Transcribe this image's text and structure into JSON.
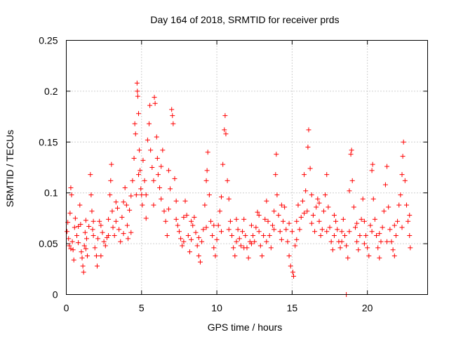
{
  "chart_data": {
    "type": "scatter",
    "title": "Day 164 of 2018, SRMTID for receiver prds",
    "xlabel": "GPS time / hours",
    "ylabel": "SRMTID / TECUs",
    "xlim": [
      0,
      24
    ],
    "ylim": [
      0,
      0.25
    ],
    "xticks": [
      0,
      5,
      10,
      15,
      20
    ],
    "xtick_labels": [
      "0",
      "5",
      "10",
      "15",
      "20"
    ],
    "yticks": [
      0,
      0.05,
      0.1,
      0.15,
      0.2,
      0.25
    ],
    "ytick_labels": [
      "0",
      "0.05",
      "0.1",
      "0.15",
      "0.2",
      "0.25"
    ],
    "grid": true,
    "marker": "+",
    "color": "#ff0000",
    "series": [
      {
        "name": "prds",
        "points": [
          [
            0.05,
            0.062
          ],
          [
            0.1,
            0.071
          ],
          [
            0.15,
            0.055
          ],
          [
            0.2,
            0.048
          ],
          [
            0.25,
            0.08
          ],
          [
            0.3,
            0.105
          ],
          [
            0.35,
            0.098
          ],
          [
            0.4,
            0.052
          ],
          [
            0.45,
            0.044
          ],
          [
            0.5,
            0.034
          ],
          [
            0.55,
            0.066
          ],
          [
            0.6,
            0.075
          ],
          [
            0.7,
            0.058
          ],
          [
            0.8,
            0.051
          ],
          [
            0.9,
            0.088
          ],
          [
            0.95,
            0.069
          ],
          [
            1.0,
            0.042
          ],
          [
            1.05,
            0.036
          ],
          [
            1.1,
            0.028
          ],
          [
            1.15,
            0.022
          ],
          [
            1.2,
            0.048
          ],
          [
            1.25,
            0.061
          ],
          [
            1.3,
            0.073
          ],
          [
            1.35,
            0.055
          ],
          [
            1.4,
            0.038
          ],
          [
            1.5,
            0.067
          ],
          [
            1.6,
            0.118
          ],
          [
            1.65,
            0.098
          ],
          [
            1.7,
            0.082
          ],
          [
            1.75,
            0.064
          ],
          [
            1.8,
            0.058
          ],
          [
            1.9,
            0.046
          ],
          [
            2.0,
            0.038
          ],
          [
            2.05,
            0.028
          ],
          [
            2.1,
            0.055
          ],
          [
            2.2,
            0.072
          ],
          [
            2.3,
            0.068
          ],
          [
            2.4,
            0.061
          ],
          [
            2.5,
            0.052
          ],
          [
            2.6,
            0.048
          ],
          [
            2.7,
            0.056
          ],
          [
            2.8,
            0.074
          ],
          [
            2.9,
            0.098
          ],
          [
            2.95,
            0.112
          ],
          [
            3.0,
            0.128
          ],
          [
            3.05,
            0.082
          ],
          [
            3.1,
            0.066
          ],
          [
            3.2,
            0.058
          ],
          [
            3.3,
            0.072
          ],
          [
            3.4,
            0.085
          ],
          [
            3.5,
            0.064
          ],
          [
            3.6,
            0.052
          ],
          [
            3.7,
            0.076
          ],
          [
            3.8,
            0.091
          ],
          [
            3.9,
            0.105
          ],
          [
            4.0,
            0.088
          ],
          [
            4.05,
            0.068
          ],
          [
            4.1,
            0.055
          ],
          [
            4.2,
            0.083
          ],
          [
            4.3,
            0.097
          ],
          [
            4.4,
            0.112
          ],
          [
            4.5,
            0.134
          ],
          [
            4.55,
            0.168
          ],
          [
            4.6,
            0.158
          ],
          [
            4.65,
            0.098
          ],
          [
            4.7,
            0.208
          ],
          [
            4.72,
            0.2
          ],
          [
            4.75,
            0.195
          ],
          [
            4.8,
            0.178
          ],
          [
            4.85,
            0.142
          ],
          [
            4.9,
            0.122
          ],
          [
            4.95,
            0.104
          ],
          [
            5.0,
            0.098
          ],
          [
            5.05,
            0.088
          ],
          [
            5.1,
            0.132
          ],
          [
            5.2,
            0.112
          ],
          [
            5.3,
            0.098
          ],
          [
            5.4,
            0.152
          ],
          [
            5.5,
            0.168
          ],
          [
            5.55,
            0.186
          ],
          [
            5.6,
            0.142
          ],
          [
            5.7,
            0.125
          ],
          [
            5.8,
            0.112
          ],
          [
            5.85,
            0.194
          ],
          [
            5.9,
            0.188
          ],
          [
            6.0,
            0.155
          ],
          [
            6.05,
            0.134
          ],
          [
            6.1,
            0.118
          ],
          [
            6.2,
            0.105
          ],
          [
            6.3,
            0.094
          ],
          [
            6.4,
            0.142
          ],
          [
            6.5,
            0.082
          ],
          [
            6.6,
            0.072
          ],
          [
            6.7,
            0.058
          ],
          [
            6.8,
            0.122
          ],
          [
            6.9,
            0.104
          ],
          [
            7.0,
            0.182
          ],
          [
            7.05,
            0.176
          ],
          [
            7.1,
            0.168
          ],
          [
            7.2,
            0.114
          ],
          [
            7.3,
            0.092
          ],
          [
            7.4,
            0.068
          ],
          [
            7.5,
            0.062
          ],
          [
            7.6,
            0.055
          ],
          [
            7.7,
            0.048
          ],
          [
            7.8,
            0.076
          ],
          [
            7.9,
            0.092
          ],
          [
            8.0,
            0.078
          ],
          [
            8.1,
            0.058
          ],
          [
            8.2,
            0.042
          ],
          [
            8.3,
            0.054
          ],
          [
            8.4,
            0.068
          ],
          [
            8.5,
            0.076
          ],
          [
            8.6,
            0.061
          ],
          [
            8.7,
            0.048
          ],
          [
            8.8,
            0.038
          ],
          [
            8.9,
            0.032
          ],
          [
            9.0,
            0.052
          ],
          [
            9.1,
            0.064
          ],
          [
            9.2,
            0.088
          ],
          [
            9.3,
            0.112
          ],
          [
            9.35,
            0.122
          ],
          [
            9.4,
            0.14
          ],
          [
            9.5,
            0.098
          ],
          [
            9.6,
            0.072
          ],
          [
            9.7,
            0.058
          ],
          [
            9.8,
            0.046
          ],
          [
            9.9,
            0.038
          ],
          [
            10.0,
            0.054
          ],
          [
            10.1,
            0.068
          ],
          [
            10.2,
            0.082
          ],
          [
            10.3,
            0.096
          ],
          [
            10.4,
            0.128
          ],
          [
            10.5,
            0.162
          ],
          [
            10.55,
            0.176
          ],
          [
            10.6,
            0.158
          ],
          [
            10.7,
            0.112
          ],
          [
            10.8,
            0.094
          ],
          [
            10.9,
            0.072
          ],
          [
            11.0,
            0.058
          ],
          [
            11.1,
            0.046
          ],
          [
            11.2,
            0.038
          ],
          [
            11.3,
            0.052
          ],
          [
            11.4,
            0.064
          ],
          [
            11.5,
            0.055
          ],
          [
            11.6,
            0.048
          ],
          [
            11.7,
            0.062
          ],
          [
            11.8,
            0.074
          ],
          [
            11.9,
            0.058
          ],
          [
            12.0,
            0.046
          ],
          [
            12.1,
            0.036
          ],
          [
            12.2,
            0.052
          ],
          [
            12.3,
            0.068
          ],
          [
            12.4,
            0.058
          ],
          [
            12.5,
            0.052
          ],
          [
            12.6,
            0.066
          ],
          [
            12.7,
            0.081
          ],
          [
            12.8,
            0.062
          ],
          [
            12.9,
            0.048
          ],
          [
            13.0,
            0.038
          ],
          [
            13.1,
            0.058
          ],
          [
            13.2,
            0.074
          ],
          [
            13.3,
            0.092
          ],
          [
            13.4,
            0.072
          ],
          [
            13.5,
            0.058
          ],
          [
            13.6,
            0.046
          ],
          [
            13.7,
            0.068
          ],
          [
            13.8,
            0.082
          ],
          [
            13.9,
            0.118
          ],
          [
            13.95,
            0.138
          ],
          [
            14.0,
            0.098
          ],
          [
            14.1,
            0.078
          ],
          [
            14.2,
            0.062
          ],
          [
            14.3,
            0.054
          ],
          [
            14.4,
            0.072
          ],
          [
            14.5,
            0.086
          ],
          [
            14.6,
            0.064
          ],
          [
            14.7,
            0.052
          ],
          [
            14.8,
            0.038
          ],
          [
            14.9,
            0.028
          ],
          [
            15.0,
            0.062
          ],
          [
            15.05,
            0.022
          ],
          [
            15.1,
            0.018
          ],
          [
            15.2,
            0.048
          ],
          [
            15.3,
            0.072
          ],
          [
            15.4,
            0.088
          ],
          [
            15.5,
            0.064
          ],
          [
            15.6,
            0.076
          ],
          [
            15.7,
            0.092
          ],
          [
            15.8,
            0.118
          ],
          [
            15.9,
            0.102
          ],
          [
            16.0,
            0.082
          ],
          [
            16.05,
            0.145
          ],
          [
            16.1,
            0.162
          ],
          [
            16.2,
            0.124
          ],
          [
            16.3,
            0.098
          ],
          [
            16.4,
            0.078
          ],
          [
            16.5,
            0.062
          ],
          [
            16.6,
            0.086
          ],
          [
            16.7,
            0.094
          ],
          [
            16.8,
            0.072
          ],
          [
            16.9,
            0.058
          ],
          [
            17.0,
            0.064
          ],
          [
            17.1,
            0.082
          ],
          [
            17.2,
            0.098
          ],
          [
            17.3,
            0.118
          ],
          [
            17.4,
            0.086
          ],
          [
            17.5,
            0.066
          ],
          [
            17.6,
            0.052
          ],
          [
            17.7,
            0.044
          ],
          [
            17.8,
            0.058
          ],
          [
            17.9,
            0.072
          ],
          [
            18.0,
            0.064
          ],
          [
            18.1,
            0.052
          ],
          [
            18.2,
            0.046
          ],
          [
            18.3,
            0.062
          ],
          [
            18.4,
            0.074
          ],
          [
            18.5,
            0.058
          ],
          [
            18.6,
            0.048
          ],
          [
            18.7,
            0.036
          ],
          [
            18.8,
            0.102
          ],
          [
            18.9,
            0.138
          ],
          [
            18.95,
            0.142
          ],
          [
            19.0,
            0.112
          ],
          [
            19.1,
            0.086
          ],
          [
            19.2,
            0.066
          ],
          [
            19.3,
            0.052
          ],
          [
            19.4,
            0.044
          ],
          [
            19.5,
            0.058
          ],
          [
            19.6,
            0.074
          ],
          [
            19.7,
            0.094
          ],
          [
            19.8,
            0.072
          ],
          [
            19.9,
            0.058
          ],
          [
            20.0,
            0.046
          ],
          [
            20.1,
            0.038
          ],
          [
            20.2,
            0.068
          ],
          [
            20.3,
            0.122
          ],
          [
            20.35,
            0.128
          ],
          [
            20.4,
            0.094
          ],
          [
            20.5,
            0.074
          ],
          [
            20.6,
            0.058
          ],
          [
            20.7,
            0.046
          ],
          [
            20.8,
            0.036
          ],
          [
            20.9,
            0.052
          ],
          [
            21.0,
            0.066
          ],
          [
            21.1,
            0.082
          ],
          [
            21.2,
            0.108
          ],
          [
            21.3,
            0.126
          ],
          [
            21.4,
            0.086
          ],
          [
            21.5,
            0.064
          ],
          [
            21.6,
            0.052
          ],
          [
            21.7,
            0.044
          ],
          [
            21.8,
            0.038
          ],
          [
            21.9,
            0.058
          ],
          [
            22.0,
            0.072
          ],
          [
            22.1,
            0.088
          ],
          [
            22.2,
            0.098
          ],
          [
            22.3,
            0.118
          ],
          [
            22.35,
            0.136
          ],
          [
            22.4,
            0.15
          ],
          [
            22.5,
            0.112
          ],
          [
            22.6,
            0.088
          ],
          [
            22.7,
            0.072
          ],
          [
            22.8,
            0.058
          ],
          [
            22.85,
            0.046
          ],
          [
            0.3,
            0.045
          ],
          [
            0.8,
            0.067
          ],
          [
            1.3,
            0.045
          ],
          [
            1.8,
            0.072
          ],
          [
            2.3,
            0.038
          ],
          [
            2.8,
            0.058
          ],
          [
            3.3,
            0.091
          ],
          [
            3.8,
            0.06
          ],
          [
            4.3,
            0.061
          ],
          [
            4.8,
            0.118
          ],
          [
            5.3,
            0.075
          ],
          [
            5.8,
            0.088
          ],
          [
            6.3,
            0.126
          ],
          [
            6.8,
            0.084
          ],
          [
            7.3,
            0.074
          ],
          [
            7.8,
            0.052
          ],
          [
            8.3,
            0.072
          ],
          [
            8.8,
            0.056
          ],
          [
            9.3,
            0.066
          ],
          [
            9.8,
            0.068
          ],
          [
            10.3,
            0.062
          ],
          [
            10.8,
            0.064
          ],
          [
            11.3,
            0.074
          ],
          [
            11.8,
            0.046
          ],
          [
            12.3,
            0.05
          ],
          [
            12.8,
            0.078
          ],
          [
            13.3,
            0.052
          ],
          [
            13.8,
            0.064
          ],
          [
            14.3,
            0.088
          ],
          [
            14.8,
            0.07
          ],
          [
            15.3,
            0.054
          ],
          [
            15.8,
            0.08
          ],
          [
            16.3,
            0.07
          ],
          [
            16.8,
            0.09
          ],
          [
            17.3,
            0.062
          ],
          [
            17.8,
            0.078
          ],
          [
            18.3,
            0.052
          ],
          [
            18.8,
            0.062
          ],
          [
            19.3,
            0.07
          ],
          [
            19.8,
            0.05
          ],
          [
            20.3,
            0.062
          ],
          [
            20.8,
            0.06
          ],
          [
            21.3,
            0.052
          ],
          [
            21.8,
            0.068
          ],
          [
            22.3,
            0.066
          ],
          [
            22.8,
            0.078
          ],
          [
            18.6,
            0.0
          ]
        ]
      }
    ]
  }
}
